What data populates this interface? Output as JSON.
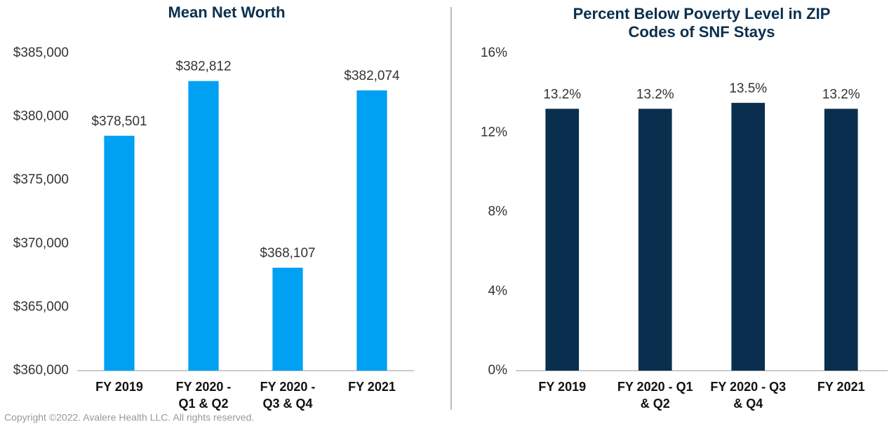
{
  "chart_data": [
    {
      "type": "bar",
      "title": "Mean Net Worth",
      "categories": [
        "FY 2019",
        "FY 2020 - Q1 & Q2",
        "FY 2020 - Q3 & Q4",
        "FY 2021"
      ],
      "values": [
        378501,
        382812,
        368107,
        382074
      ],
      "value_labels": [
        "$378,501",
        "$382,812",
        "$368,107",
        "$382,074"
      ],
      "color": "#00a0f2",
      "ylim": [
        360000,
        385000
      ],
      "yticks": [
        {
          "value": 360000,
          "label": "$360,000"
        },
        {
          "value": 365000,
          "label": "$365,000"
        },
        {
          "value": 370000,
          "label": "$370,000"
        },
        {
          "value": 375000,
          "label": "$375,000"
        },
        {
          "value": 380000,
          "label": "$380,000"
        },
        {
          "value": 385000,
          "label": "$385,000"
        }
      ]
    },
    {
      "type": "bar",
      "title": "Percent Below Poverty Level in ZIP Codes of SNF Stays",
      "categories": [
        "FY 2019",
        "FY 2020 - Q1 & Q2",
        "FY 2020 - Q3 & Q4",
        "FY 2021"
      ],
      "values": [
        13.2,
        13.2,
        13.5,
        13.2
      ],
      "value_labels": [
        "13.2%",
        "13.2%",
        "13.5%",
        "13.2%"
      ],
      "color": "#0a2f4e",
      "ylim": [
        0,
        16
      ],
      "yticks": [
        {
          "value": 0,
          "label": "0%"
        },
        {
          "value": 4,
          "label": "4%"
        },
        {
          "value": 8,
          "label": "8%"
        },
        {
          "value": 12,
          "label": "12%"
        },
        {
          "value": 16,
          "label": "16%"
        }
      ]
    }
  ],
  "copyright": "Copyright ©2022. Avalere Health LLC. All rights reserved."
}
